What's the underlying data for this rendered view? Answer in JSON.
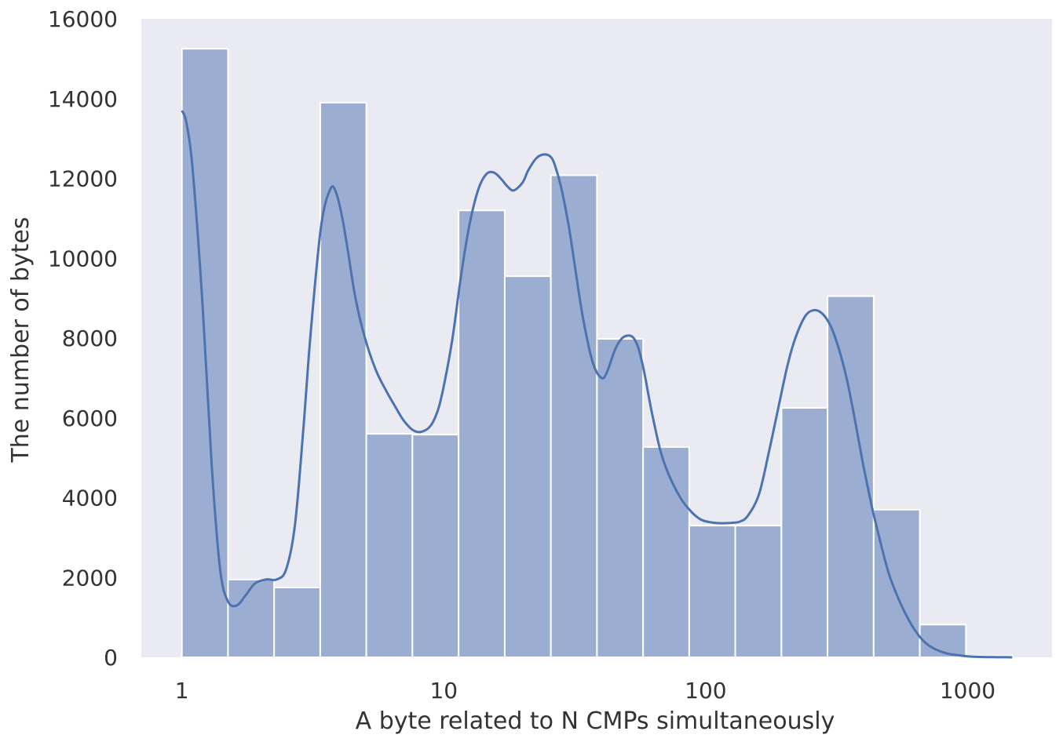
{
  "chart_data": {
    "type": "bar",
    "xlabel": "A byte related to N CMPs simultaneously",
    "ylabel": "The number of bytes",
    "x_scale": "log10",
    "xlim": [
      0.7,
      2100
    ],
    "ylim": [
      0,
      16000
    ],
    "grid": false,
    "x_ticks": [
      1,
      10,
      100,
      1000
    ],
    "x_tick_labels": [
      "1",
      "10",
      "100",
      "1000"
    ],
    "y_ticks": [
      0,
      2000,
      4000,
      6000,
      8000,
      10000,
      12000,
      14000,
      16000
    ],
    "y_tick_labels": [
      "0",
      "2000",
      "4000",
      "6000",
      "8000",
      "10000",
      "12000",
      "14000",
      "16000"
    ],
    "bin_edges": [
      1,
      1.5,
      2.25,
      3.375,
      5.06,
      7.59,
      11.39,
      17.09,
      25.63,
      38.44,
      57.67,
      86.5,
      129.7,
      194.6,
      291.9,
      437.9,
      656.8,
      985.3,
      1478
    ],
    "values": [
      15250,
      1950,
      1750,
      13900,
      5600,
      5580,
      11200,
      9550,
      12080,
      7980,
      5270,
      3300,
      3300,
      6250,
      9050,
      3700,
      820,
      40
    ],
    "kde": {
      "x": [
        1,
        1.04,
        1.1,
        1.2,
        1.3,
        1.4,
        1.5,
        1.62,
        1.75,
        1.9,
        2.1,
        2.3,
        2.5,
        2.7,
        2.9,
        3.1,
        3.4,
        3.7,
        3.9,
        4.1,
        4.3,
        4.6,
        5.0,
        5.5,
        6.0,
        6.5,
        7.0,
        7.6,
        8.2,
        8.9,
        9.5,
        10.0,
        10.8,
        11.6,
        12.5,
        13.5,
        14.5,
        15.5,
        16.5,
        17.5,
        18.5,
        20.0,
        21.0,
        22.5,
        24.0,
        25.5,
        26.5,
        28.0,
        30.0,
        32.0,
        34.0,
        37.0,
        40.0,
        42.0,
        45.0,
        48.0,
        52.0,
        55.0,
        58.0,
        62.0,
        67.0,
        72.0,
        80.0,
        88.0,
        96.0,
        105.0,
        115.0,
        125.0,
        135.0,
        145.0,
        160.0,
        175.0,
        190.0,
        205.0,
        220.0,
        240.0,
        260.0,
        280.0,
        300.0,
        320.0,
        345.0,
        370.0,
        400.0,
        430.0,
        460.0,
        500.0,
        550.0,
        600.0,
        650.0,
        700.0,
        760.0,
        830.0,
        900.0,
        980.0,
        1060.0,
        1150.0,
        1250.0,
        1350.0,
        1480.0
      ],
      "y": [
        13700,
        13400,
        12200,
        8800,
        4800,
        2200,
        1400,
        1300,
        1550,
        1850,
        1950,
        1950,
        2200,
        3300,
        5600,
        8100,
        10800,
        11750,
        11600,
        11000,
        10200,
        9000,
        8000,
        7200,
        6700,
        6300,
        5950,
        5700,
        5650,
        5800,
        6200,
        6800,
        8000,
        9500,
        10800,
        11700,
        12100,
        12150,
        12000,
        11800,
        11700,
        11900,
        12200,
        12500,
        12600,
        12550,
        12350,
        11800,
        10800,
        9600,
        8500,
        7400,
        7000,
        7150,
        7700,
        8000,
        8050,
        7800,
        7200,
        6200,
        5200,
        4600,
        4000,
        3650,
        3450,
        3380,
        3360,
        3370,
        3400,
        3550,
        4100,
        5200,
        6300,
        7300,
        8000,
        8550,
        8700,
        8600,
        8300,
        7800,
        7000,
        6000,
        4800,
        3800,
        3000,
        2100,
        1400,
        900,
        550,
        330,
        190,
        100,
        60,
        30,
        15,
        8,
        4,
        2,
        0
      ]
    },
    "colors": {
      "plot_background": "#eaeaf2",
      "bar_fill": "#4c72b0",
      "bar_edge": "#ffffff",
      "kde_line": "#4c72b0",
      "text": "#333333"
    }
  }
}
